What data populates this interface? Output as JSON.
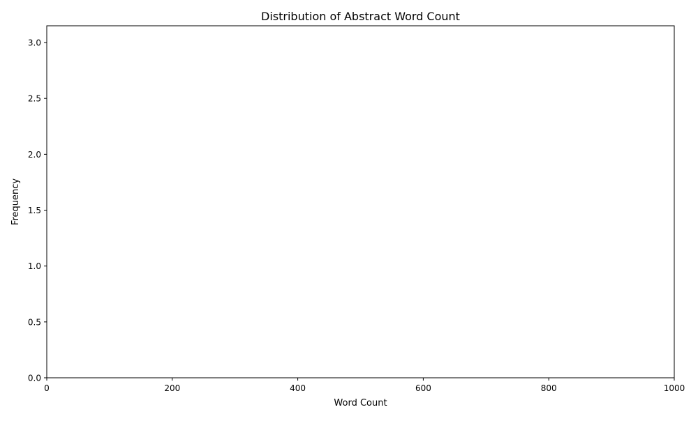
{
  "chart_data": {
    "type": "bar",
    "title": "Distribution of Abstract Word Count",
    "xlabel": "Word Count",
    "ylabel": "Frequency",
    "xlim": [
      0,
      1000
    ],
    "ylim": [
      0,
      3.15
    ],
    "xticks": [
      0,
      200,
      400,
      600,
      800,
      1000
    ],
    "xtick_labels": [
      "0",
      "200",
      "400",
      "600",
      "800",
      "1000"
    ],
    "yticks": [
      0,
      0.5,
      1,
      1.5,
      2,
      2.5,
      3
    ],
    "ytick_labels": [
      "0.0",
      "0.5",
      "1.0",
      "1.5",
      "2.0",
      "2.5",
      "3.0"
    ],
    "grid": false,
    "bins": [],
    "values": []
  }
}
